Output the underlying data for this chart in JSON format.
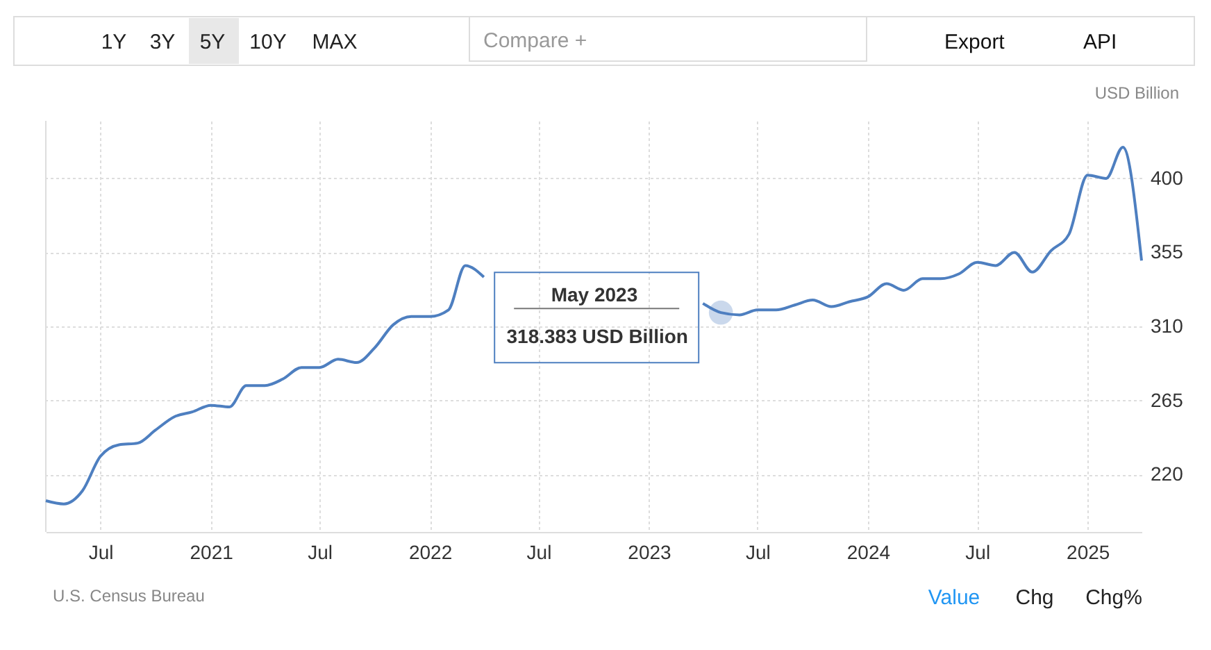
{
  "chart_data": {
    "type": "line",
    "ylabel": "USD Billion",
    "x": [
      "2020-04",
      "2020-05",
      "2020-06",
      "2020-07",
      "2020-08",
      "2020-09",
      "2020-10",
      "2020-11",
      "2020-12",
      "2021-01",
      "2021-02",
      "2021-03",
      "2021-04",
      "2021-05",
      "2021-06",
      "2021-07",
      "2021-08",
      "2021-09",
      "2021-10",
      "2021-11",
      "2021-12",
      "2022-01",
      "2022-02",
      "2022-03",
      "2022-04",
      "2022-05",
      "2022-06",
      "2022-07",
      "2022-08",
      "2022-09",
      "2022-10",
      "2022-11",
      "2022-12",
      "2023-01",
      "2023-02",
      "2023-03",
      "2023-04",
      "2023-05",
      "2023-06",
      "2023-07",
      "2023-08",
      "2023-09",
      "2023-10",
      "2023-11",
      "2023-12",
      "2024-01",
      "2024-02",
      "2024-03",
      "2024-04",
      "2024-05",
      "2024-06",
      "2024-07",
      "2024-08",
      "2024-09",
      "2024-10",
      "2024-11",
      "2024-12",
      "2025-01",
      "2025-02",
      "2025-03",
      "2025-04"
    ],
    "series": [
      {
        "color": "#4e7fc0",
        "values": [
          204,
          202,
          210,
          231,
          238,
          239,
          247,
          255,
          258,
          262,
          261,
          274,
          274,
          278,
          285,
          285,
          290,
          288,
          297,
          311,
          316,
          316,
          320,
          347,
          340,
          null,
          null,
          null,
          null,
          null,
          null,
          null,
          null,
          null,
          null,
          null,
          324,
          318.383,
          317,
          320,
          320,
          323,
          326,
          322,
          325,
          328,
          336,
          332,
          339,
          339,
          342,
          349,
          347,
          355,
          343,
          356,
          366,
          402,
          400,
          419,
          350
        ]
      }
    ],
    "xlim": [
      "2020-04",
      "2025-04"
    ],
    "xticks": [
      {
        "value": "2020-07",
        "label": "Jul"
      },
      {
        "value": "2021-01",
        "label": "2021"
      },
      {
        "value": "2021-07",
        "label": "Jul"
      },
      {
        "value": "2022-01",
        "label": "2022"
      },
      {
        "value": "2022-07",
        "label": "Jul"
      },
      {
        "value": "2023-01",
        "label": "2023"
      },
      {
        "value": "2023-07",
        "label": "Jul"
      },
      {
        "value": "2024-01",
        "label": "2024"
      },
      {
        "value": "2024-07",
        "label": "Jul"
      },
      {
        "value": "2025-01",
        "label": "2025"
      }
    ],
    "ylim": [
      185,
      435
    ],
    "yticks": [
      220,
      265,
      310,
      355,
      400
    ],
    "grid": true,
    "line_style": "solid",
    "marker": "none",
    "annotations": [
      "1Y",
      "3Y",
      "5Y",
      "10Y",
      "MAX",
      "Compare +",
      "Export",
      "API",
      "U.S. Census Bureau",
      "Value",
      "Chg",
      "Chg%",
      "May 2023",
      {
        "text": "318.383 USD Billion",
        "x": "2023-05",
        "y": 318.383
      }
    ]
  }
}
